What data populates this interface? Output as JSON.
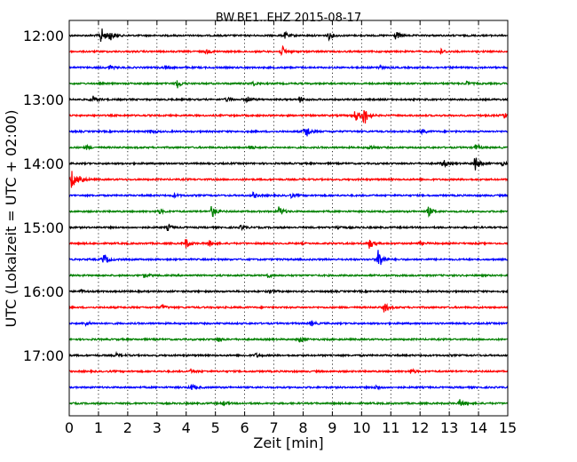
{
  "chart_data": {
    "type": "line",
    "title": "BW.BE1..EHZ 2015-08-17",
    "xlabel": "Zeit  [min]",
    "ylabel": "UTC (Lokalzeit = UTC + 02:00)",
    "xlim": [
      0,
      15
    ],
    "x_ticks": [
      "0",
      "1",
      "2",
      "3",
      "4",
      "5",
      "6",
      "7",
      "8",
      "9",
      "10",
      "11",
      "12",
      "13",
      "14",
      "15"
    ],
    "y_tick_labels": [
      "12:00",
      "13:00",
      "14:00",
      "15:00",
      "16:00",
      "17:00"
    ],
    "trace_interval_min": 15,
    "grid": "vertical dotted lines at each minute",
    "trace_colors": [
      "#000000",
      "#ff0000",
      "#0000ff",
      "#008000"
    ],
    "traces": [
      {
        "start": "12:00",
        "events": [
          [
            1.1,
            9
          ],
          [
            1.4,
            5
          ],
          [
            7.4,
            3
          ],
          [
            8.9,
            4
          ],
          [
            11.2,
            4
          ]
        ]
      },
      {
        "start": "12:15",
        "events": [
          [
            4.7,
            2
          ],
          [
            7.3,
            5
          ],
          [
            12.7,
            3
          ]
        ]
      },
      {
        "start": "12:30",
        "events": [
          [
            1.4,
            2
          ],
          [
            3.3,
            2
          ],
          [
            10.6,
            2
          ]
        ]
      },
      {
        "start": "12:45",
        "events": [
          [
            3.7,
            5
          ],
          [
            6.3,
            2
          ],
          [
            13.6,
            2
          ]
        ]
      },
      {
        "start": "13:00",
        "events": [
          [
            0.8,
            4
          ],
          [
            5.4,
            2
          ],
          [
            6.1,
            3
          ],
          [
            7.9,
            3
          ]
        ]
      },
      {
        "start": "13:15",
        "events": [
          [
            9.8,
            6
          ],
          [
            10.1,
            10
          ],
          [
            14.9,
            3
          ]
        ]
      },
      {
        "start": "13:30",
        "events": [
          [
            2.8,
            2
          ],
          [
            8.1,
            8
          ],
          [
            12.1,
            2
          ]
        ]
      },
      {
        "start": "13:45",
        "events": [
          [
            0.6,
            2
          ],
          [
            6.2,
            2
          ],
          [
            10.3,
            3
          ],
          [
            13.9,
            3
          ]
        ]
      },
      {
        "start": "14:00",
        "events": [
          [
            12.8,
            4
          ],
          [
            13.9,
            8
          ],
          [
            14.8,
            2
          ]
        ]
      },
      {
        "start": "14:15",
        "events": [
          [
            0.1,
            10
          ],
          [
            0.4,
            4
          ]
        ]
      },
      {
        "start": "14:30",
        "events": [
          [
            3.6,
            2
          ],
          [
            6.3,
            3
          ],
          [
            7.6,
            2
          ]
        ]
      },
      {
        "start": "14:45",
        "events": [
          [
            3.1,
            2
          ],
          [
            4.9,
            6
          ],
          [
            7.2,
            5
          ],
          [
            12.3,
            5
          ]
        ]
      },
      {
        "start": "15:00",
        "events": [
          [
            3.4,
            3
          ],
          [
            5.9,
            2
          ],
          [
            9.2,
            2
          ]
        ]
      },
      {
        "start": "15:15",
        "events": [
          [
            4.0,
            5
          ],
          [
            4.8,
            3
          ],
          [
            10.3,
            5
          ],
          [
            12.0,
            2
          ]
        ]
      },
      {
        "start": "15:30",
        "events": [
          [
            1.2,
            6
          ],
          [
            10.6,
            11
          ]
        ]
      },
      {
        "start": "15:45",
        "events": [
          [
            2.6,
            2
          ],
          [
            6.8,
            2
          ]
        ]
      },
      {
        "start": "16:00",
        "events": [
          [
            0.4,
            2
          ],
          [
            6.9,
            2
          ]
        ]
      },
      {
        "start": "16:15",
        "events": [
          [
            10.8,
            5
          ],
          [
            3.2,
            2
          ]
        ]
      },
      {
        "start": "16:30",
        "events": [
          [
            0.6,
            2
          ],
          [
            8.3,
            2
          ]
        ]
      },
      {
        "start": "16:45",
        "events": [
          [
            5.1,
            2
          ],
          [
            7.9,
            3
          ]
        ]
      },
      {
        "start": "17:00",
        "events": [
          [
            1.6,
            2
          ],
          [
            6.4,
            2
          ]
        ]
      },
      {
        "start": "17:15",
        "events": [
          [
            4.2,
            2
          ],
          [
            11.7,
            2
          ]
        ]
      },
      {
        "start": "17:30",
        "events": [
          [
            4.2,
            3
          ],
          [
            10.5,
            2
          ]
        ]
      },
      {
        "start": "17:45",
        "events": [
          [
            5.3,
            2
          ],
          [
            13.4,
            4
          ]
        ]
      }
    ]
  }
}
